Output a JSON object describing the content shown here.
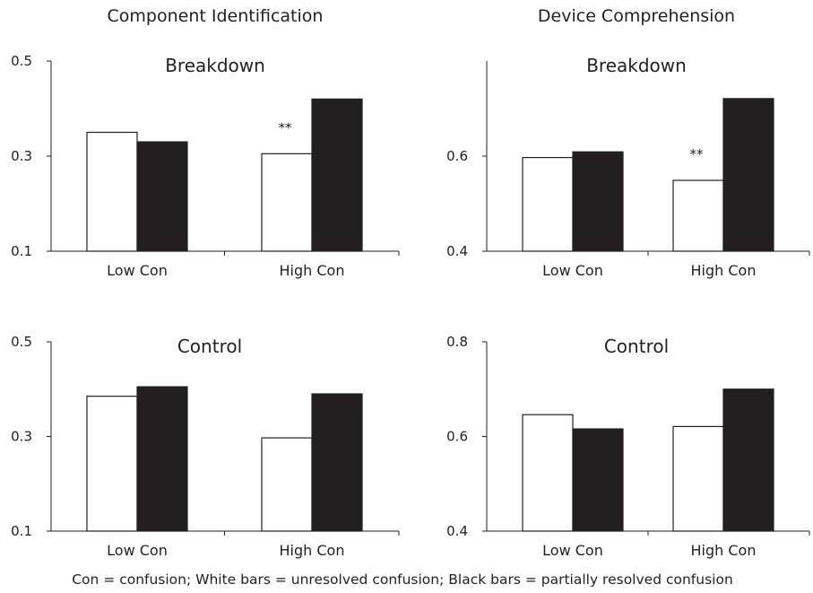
{
  "column_titles": [
    "Component Identification",
    "Device Comprehension"
  ],
  "caption": "Con = confusion; White bars = unresolved confusion; Black bars = partially resolved confusion",
  "colors": {
    "white_bar": "#ffffff",
    "black_bar": "#231f20",
    "axis": "#231f20"
  },
  "chart_data": [
    {
      "type": "bar",
      "title": "Breakdown",
      "column": "Component Identification",
      "categories": [
        "Low Con",
        "High Con"
      ],
      "series": [
        {
          "key": "white",
          "values": [
            0.35,
            0.305
          ]
        },
        {
          "key": "black",
          "values": [
            0.33,
            0.42
          ]
        }
      ],
      "ylim": [
        0.1,
        0.5
      ],
      "yticks": [
        "0.1",
        "0.3",
        "0.5"
      ],
      "annotations": [
        {
          "text": "**",
          "category": "High Con"
        }
      ]
    },
    {
      "type": "bar",
      "title": "Breakdown",
      "column": "Device Comprehension",
      "categories": [
        "Low Con",
        "High Con"
      ],
      "series": [
        {
          "key": "white",
          "values": [
            0.597,
            0.549
          ]
        },
        {
          "key": "black",
          "values": [
            0.609,
            0.721
          ]
        }
      ],
      "ylim": [
        0.4,
        0.8
      ],
      "yticks": [
        "0.4",
        "0.6"
      ],
      "annotations": [
        {
          "text": "**",
          "category": "High Con"
        }
      ]
    },
    {
      "type": "bar",
      "title": "Control",
      "column": "Component Identification",
      "categories": [
        "Low Con",
        "High Con"
      ],
      "series": [
        {
          "key": "white",
          "values": [
            0.385,
            0.297
          ]
        },
        {
          "key": "black",
          "values": [
            0.405,
            0.39
          ]
        }
      ],
      "ylim": [
        0.1,
        0.5
      ],
      "yticks": [
        "0.1",
        "0.3",
        "0.5"
      ],
      "annotations": []
    },
    {
      "type": "bar",
      "title": "Control",
      "column": "Device Comprehension",
      "categories": [
        "Low Con",
        "High Con"
      ],
      "series": [
        {
          "key": "white",
          "values": [
            0.646,
            0.621
          ]
        },
        {
          "key": "black",
          "values": [
            0.616,
            0.7
          ]
        }
      ],
      "ylim": [
        0.4,
        0.8
      ],
      "yticks": [
        "0.4",
        "0.6",
        "0.8"
      ],
      "annotations": []
    }
  ]
}
